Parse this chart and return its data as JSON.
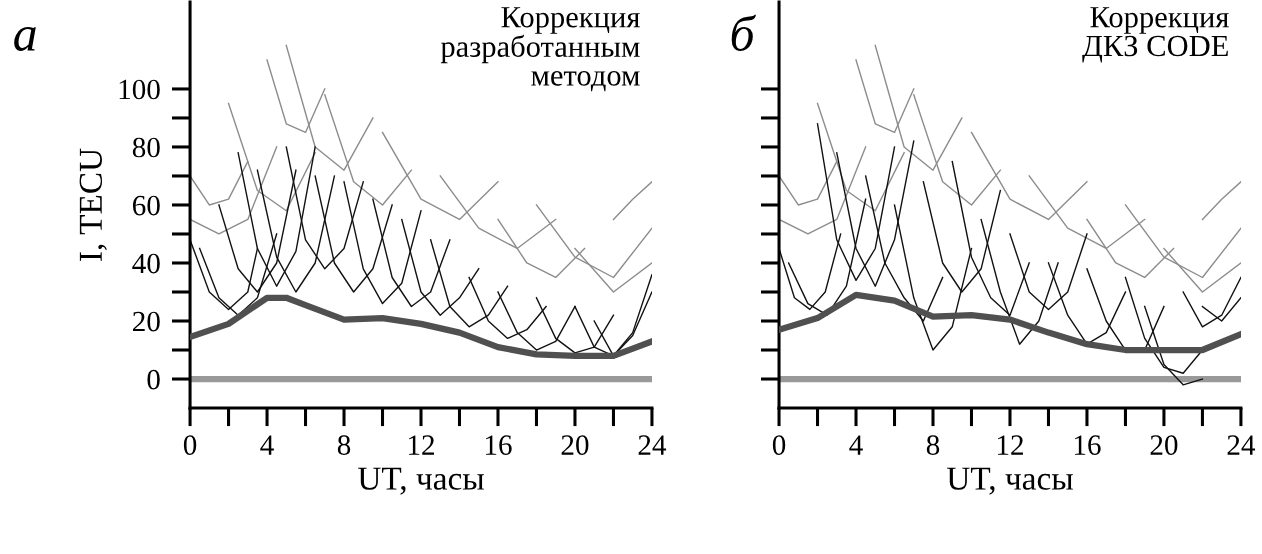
{
  "chart_data": [
    {
      "type": "line",
      "title": "а",
      "subtitle": "Коррекция\nразработанным\nметодом",
      "xlabel": "UT, часы",
      "ylabel": "I, TECU",
      "xlim": [
        0,
        24
      ],
      "ylim": [
        -10,
        130
      ],
      "xticks": [
        0,
        4,
        8,
        12,
        16,
        20,
        24
      ],
      "yticks": [
        0,
        20,
        40,
        60,
        80,
        100
      ],
      "grid": false,
      "legend": false,
      "marker": "none",
      "line_style": "solid",
      "ref_lines": [
        {
          "axis": "y",
          "value": 0,
          "color": "#999999"
        }
      ],
      "series": [
        {
          "color": "#8c8c8c",
          "x": [
            0,
            1,
            2,
            3
          ],
          "values": [
            70,
            60,
            62,
            75
          ]
        },
        {
          "color": "#8c8c8c",
          "x": [
            0,
            1.5,
            3,
            4.5
          ],
          "values": [
            55,
            50,
            55,
            80
          ]
        },
        {
          "color": "#8c8c8c",
          "x": [
            2,
            3.5,
            5,
            6.5
          ],
          "values": [
            95,
            65,
            58,
            78
          ]
        },
        {
          "color": "#8c8c8c",
          "x": [
            4,
            5,
            6,
            7
          ],
          "values": [
            110,
            88,
            85,
            100
          ]
        },
        {
          "color": "#8c8c8c",
          "x": [
            5,
            6.5,
            8,
            9.5
          ],
          "values": [
            115,
            80,
            72,
            90
          ]
        },
        {
          "color": "#8c8c8c",
          "x": [
            7,
            8.5,
            10,
            11.5
          ],
          "values": [
            98,
            68,
            60,
            72
          ]
        },
        {
          "color": "#8c8c8c",
          "x": [
            10,
            12,
            14,
            16
          ],
          "values": [
            85,
            62,
            55,
            68
          ]
        },
        {
          "color": "#8c8c8c",
          "x": [
            13,
            15,
            17,
            19
          ],
          "values": [
            70,
            52,
            45,
            55
          ]
        },
        {
          "color": "#8c8c8c",
          "x": [
            16,
            17.5,
            19,
            20.5
          ],
          "values": [
            55,
            40,
            35,
            45
          ]
        },
        {
          "color": "#8c8c8c",
          "x": [
            18,
            20,
            22,
            24
          ],
          "values": [
            60,
            42,
            35,
            52
          ]
        },
        {
          "color": "#8c8c8c",
          "x": [
            20,
            22,
            24
          ],
          "values": [
            45,
            30,
            40
          ]
        },
        {
          "color": "#8c8c8c",
          "x": [
            22,
            23,
            24
          ],
          "values": [
            55,
            62,
            68
          ]
        },
        {
          "color": "#111111",
          "x": [
            0,
            1,
            2,
            3,
            3.5
          ],
          "values": [
            48,
            30,
            24,
            30,
            45
          ]
        },
        {
          "color": "#111111",
          "x": [
            0.5,
            1.5,
            2.5,
            3.5,
            4.5
          ],
          "values": [
            45,
            28,
            22,
            28,
            50
          ]
        },
        {
          "color": "#111111",
          "x": [
            1.5,
            2.5,
            3.5,
            4.5,
            5.5
          ],
          "values": [
            60,
            38,
            30,
            40,
            72
          ]
        },
        {
          "color": "#111111",
          "x": [
            2.5,
            3.5,
            4.5,
            5.5,
            6.5
          ],
          "values": [
            78,
            45,
            32,
            44,
            80
          ]
        },
        {
          "color": "#111111",
          "x": [
            3.5,
            4.5,
            5.5,
            6.5,
            7.5
          ],
          "values": [
            72,
            42,
            30,
            40,
            70
          ]
        },
        {
          "color": "#111111",
          "x": [
            5,
            6,
            7,
            8,
            9
          ],
          "values": [
            80,
            48,
            38,
            45,
            68
          ]
        },
        {
          "color": "#111111",
          "x": [
            6.5,
            7.5,
            8.5,
            9.5,
            10.5
          ],
          "values": [
            70,
            40,
            30,
            38,
            60
          ]
        },
        {
          "color": "#111111",
          "x": [
            8,
            9,
            10,
            11,
            12
          ],
          "values": [
            68,
            38,
            26,
            33,
            58
          ]
        },
        {
          "color": "#111111",
          "x": [
            9.5,
            10.5,
            11.5,
            12.5,
            13.5
          ],
          "values": [
            62,
            35,
            25,
            30,
            48
          ]
        },
        {
          "color": "#111111",
          "x": [
            11,
            12,
            13,
            14,
            15
          ],
          "values": [
            55,
            30,
            22,
            28,
            38
          ]
        },
        {
          "color": "#111111",
          "x": [
            12.5,
            13.5,
            14.5,
            15.5,
            16.5
          ],
          "values": [
            48,
            25,
            18,
            22,
            32
          ]
        },
        {
          "color": "#111111",
          "x": [
            14.5,
            15.5,
            16.5,
            17.5,
            18.5
          ],
          "values": [
            35,
            20,
            14,
            17,
            25
          ]
        },
        {
          "color": "#111111",
          "x": [
            16,
            17,
            18,
            19,
            20
          ],
          "values": [
            30,
            16,
            10,
            13,
            25
          ]
        },
        {
          "color": "#111111",
          "x": [
            18,
            19,
            20,
            21,
            22
          ],
          "values": [
            28,
            14,
            9,
            11,
            22
          ]
        },
        {
          "color": "#111111",
          "x": [
            20,
            21,
            22,
            23,
            24
          ],
          "values": [
            25,
            11,
            8,
            15,
            30
          ]
        },
        {
          "color": "#111111",
          "x": [
            21,
            22,
            23,
            24
          ],
          "values": [
            20,
            8,
            16,
            36
          ]
        },
        {
          "color": "#505050",
          "x": [
            0,
            2,
            4,
            5,
            6,
            8,
            10,
            12,
            14,
            16,
            18,
            20,
            22,
            24
          ],
          "values": [
            14.5,
            19,
            28,
            28,
            25.5,
            20.5,
            21,
            19,
            16,
            11,
            8.5,
            8,
            8,
            13
          ]
        }
      ]
    },
    {
      "type": "line",
      "title": "б",
      "subtitle": "Коррекция\nДКЗ CODE",
      "xlabel": "UT, часы",
      "xlim": [
        0,
        24
      ],
      "ylim": [
        -10,
        130
      ],
      "tick_labels": "x",
      "xticks": [
        0,
        4,
        8,
        12,
        16,
        20,
        24
      ],
      "yticks": [
        0,
        20,
        40,
        60,
        80,
        100
      ],
      "grid": false,
      "legend": false,
      "marker": "none",
      "line_style": "solid",
      "ref_lines": [
        {
          "axis": "y",
          "value": 0,
          "color": "#999999"
        }
      ],
      "series": [
        {
          "color": "#8c8c8c",
          "x": [
            0,
            1,
            2,
            3
          ],
          "values": [
            70,
            60,
            62,
            75
          ]
        },
        {
          "color": "#8c8c8c",
          "x": [
            0,
            1.5,
            3,
            4.5
          ],
          "values": [
            55,
            50,
            55,
            80
          ]
        },
        {
          "color": "#8c8c8c",
          "x": [
            2,
            3.5,
            5,
            6.5
          ],
          "values": [
            95,
            65,
            58,
            78
          ]
        },
        {
          "color": "#8c8c8c",
          "x": [
            4,
            5,
            6,
            7
          ],
          "values": [
            110,
            88,
            85,
            100
          ]
        },
        {
          "color": "#8c8c8c",
          "x": [
            5,
            6.5,
            8,
            9.5
          ],
          "values": [
            115,
            80,
            72,
            90
          ]
        },
        {
          "color": "#8c8c8c",
          "x": [
            7,
            8.5,
            10,
            11.5
          ],
          "values": [
            98,
            68,
            60,
            72
          ]
        },
        {
          "color": "#8c8c8c",
          "x": [
            10,
            12,
            14,
            16
          ],
          "values": [
            85,
            62,
            55,
            68
          ]
        },
        {
          "color": "#8c8c8c",
          "x": [
            13,
            15,
            17,
            19
          ],
          "values": [
            70,
            52,
            45,
            55
          ]
        },
        {
          "color": "#8c8c8c",
          "x": [
            16,
            17.5,
            19,
            20.5
          ],
          "values": [
            55,
            40,
            35,
            45
          ]
        },
        {
          "color": "#8c8c8c",
          "x": [
            18,
            20,
            22,
            24
          ],
          "values": [
            60,
            42,
            35,
            52
          ]
        },
        {
          "color": "#8c8c8c",
          "x": [
            20,
            22,
            24
          ],
          "values": [
            45,
            30,
            40
          ]
        },
        {
          "color": "#8c8c8c",
          "x": [
            22,
            23,
            24
          ],
          "values": [
            55,
            62,
            68
          ]
        },
        {
          "color": "#111111",
          "x": [
            0,
            0.8,
            1.6,
            2.4,
            3.2
          ],
          "values": [
            45,
            28,
            24,
            30,
            50
          ]
        },
        {
          "color": "#111111",
          "x": [
            0.5,
            1.5,
            2.5,
            3.5,
            4.5
          ],
          "values": [
            40,
            26,
            22,
            32,
            62
          ]
        },
        {
          "color": "#111111",
          "x": [
            2,
            3,
            4,
            5,
            6
          ],
          "values": [
            88,
            48,
            34,
            45,
            80
          ]
        },
        {
          "color": "#111111",
          "x": [
            3,
            4,
            5,
            6,
            7
          ],
          "values": [
            78,
            45,
            32,
            48,
            82
          ]
        },
        {
          "color": "#111111",
          "x": [
            4.5,
            5.5,
            6.5,
            7.5,
            8.5
          ],
          "values": [
            70,
            40,
            28,
            20,
            35
          ]
        },
        {
          "color": "#111111",
          "x": [
            6,
            7,
            8,
            9,
            10
          ],
          "values": [
            60,
            28,
            10,
            18,
            45
          ]
        },
        {
          "color": "#111111",
          "x": [
            7.5,
            8.5,
            9.5,
            10.5,
            11.5
          ],
          "values": [
            68,
            40,
            30,
            38,
            65
          ]
        },
        {
          "color": "#111111",
          "x": [
            9,
            10,
            11,
            12,
            13
          ],
          "values": [
            75,
            42,
            28,
            22,
            40
          ]
        },
        {
          "color": "#111111",
          "x": [
            10.5,
            11.5,
            12.5,
            13.5,
            14.5
          ],
          "values": [
            55,
            30,
            12,
            20,
            40
          ]
        },
        {
          "color": "#111111",
          "x": [
            12,
            13,
            14,
            15,
            16
          ],
          "values": [
            50,
            30,
            24,
            30,
            50
          ]
        },
        {
          "color": "#111111",
          "x": [
            14,
            15,
            16,
            17,
            18
          ],
          "values": [
            40,
            22,
            12,
            16,
            30
          ]
        },
        {
          "color": "#111111",
          "x": [
            16,
            17,
            18,
            19,
            20
          ],
          "values": [
            38,
            20,
            10,
            10,
            25
          ]
        },
        {
          "color": "#111111",
          "x": [
            18,
            19,
            20,
            21,
            22
          ],
          "values": [
            35,
            14,
            4,
            2,
            10
          ]
        },
        {
          "color": "#111111",
          "x": [
            19,
            20,
            21,
            22
          ],
          "values": [
            25,
            5,
            -2,
            0
          ]
        },
        {
          "color": "#111111",
          "x": [
            21,
            22,
            23,
            24
          ],
          "values": [
            30,
            18,
            22,
            35
          ]
        },
        {
          "color": "#111111",
          "x": [
            22,
            23,
            24
          ],
          "values": [
            25,
            20,
            28
          ]
        },
        {
          "color": "#505050",
          "x": [
            0,
            2,
            4,
            6,
            8,
            10,
            12,
            14,
            16,
            18,
            20,
            22,
            24
          ],
          "values": [
            17,
            21,
            29,
            27,
            21.5,
            22,
            20.5,
            16,
            12,
            10,
            10,
            10,
            15.5
          ]
        }
      ]
    }
  ]
}
